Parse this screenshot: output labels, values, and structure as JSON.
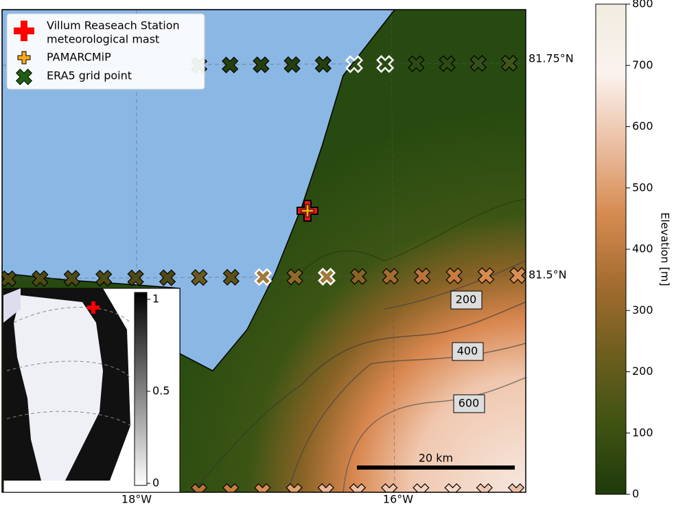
{
  "legend": {
    "items": [
      {
        "lines": [
          "Villum Reaseach Station",
          "meteorological mast"
        ]
      },
      {
        "lines": [
          "PAMARCMiP"
        ]
      },
      {
        "lines": [
          "ERA5 grid point"
        ]
      }
    ]
  },
  "graticule": {
    "lon_labels": [
      "18°W",
      "16°W"
    ],
    "lat_labels": [
      "81.75°N",
      "81.5°N"
    ]
  },
  "contour_labels": [
    200,
    400,
    600
  ],
  "scale_bar": "20 km",
  "colorbar": {
    "label": "Elevation [m]",
    "lim": [
      0,
      800
    ],
    "ticks": [
      0,
      100,
      200,
      300,
      400,
      500,
      600,
      700,
      800
    ],
    "colormap": [
      "#1f3a0b",
      "#3f5312",
      "#6d5e1e",
      "#a46c30",
      "#d68b50",
      "#ebbfa2",
      "#fbf2ee",
      "#f1ece0"
    ]
  },
  "inset_colorbar": {
    "lim": [
      0,
      1
    ],
    "ticks": [
      0,
      0.5,
      1
    ]
  }
}
